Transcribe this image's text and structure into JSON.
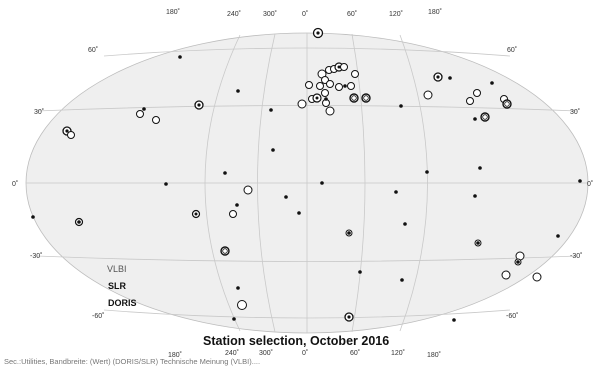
{
  "map": {
    "title": "Station selection, October 2016",
    "top_lon_labels": [
      "180˚",
      "240˚",
      "300˚",
      "0˚",
      "60˚",
      "120˚",
      "180˚"
    ],
    "bottom_lon_labels": [
      "180˚",
      "240˚",
      "300˚",
      "0˚",
      "60˚",
      "120˚",
      "180˚"
    ],
    "lat_labels_left": [
      "60˚",
      "30˚",
      "0˚",
      "-30˚",
      "-60˚"
    ],
    "lat_labels_right": [
      "60˚",
      "30˚",
      "0˚",
      "-30˚",
      "-60˚"
    ],
    "legend": {
      "vlbi": "VLBI",
      "slr": "SLR",
      "doris": "DORIS"
    },
    "footer_caption": "Sec.:Utilities, Bandbreite: (Wert) (DORIS/SLR) Technische Meinung (VLBI)....",
    "colors": {
      "ellipse_fill": "#efefef",
      "grid": "#c9c9c9",
      "marker": "#111111"
    },
    "station_types": [
      "doris-dot",
      "slr-ring",
      "vlbi-double-ring"
    ]
  }
}
